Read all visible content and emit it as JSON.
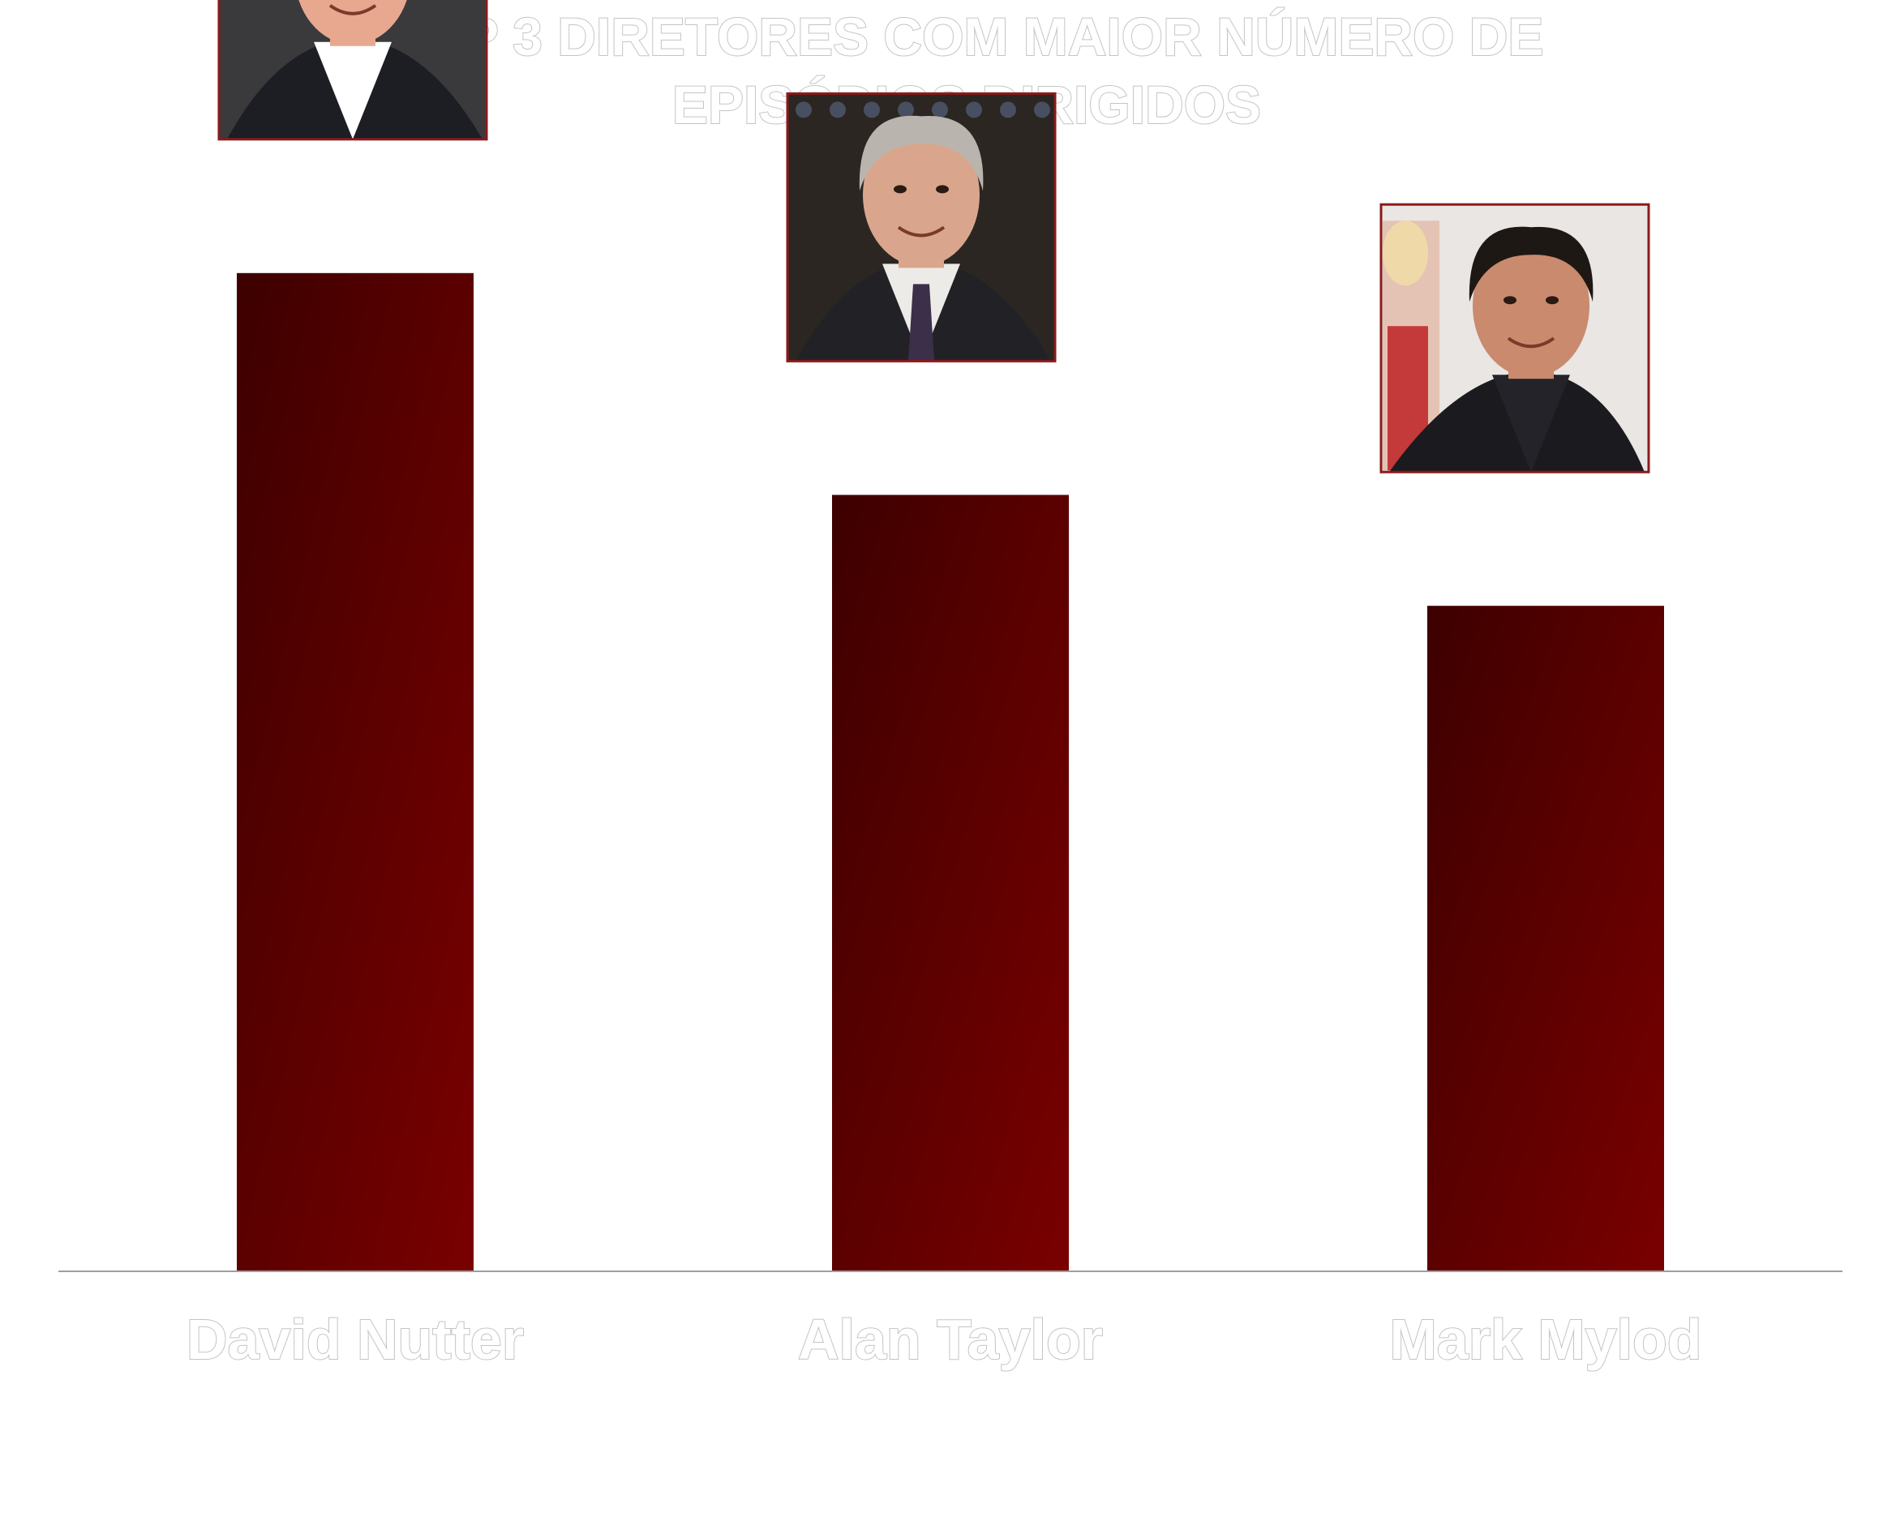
{
  "colors": {
    "bar_dark": "#3d0000",
    "bar_light": "#7a0000",
    "photo_border": "#8b1a1a",
    "axis": "#9e9e9e",
    "label_fill": "#ffffff",
    "label_outline": "#c4c4c4"
  },
  "chart_data": {
    "type": "bar",
    "title_lines": [
      "TOP 3 DIRETORES COM MAIOR NÚMERO DE",
      "EPISÓDIOS DIRIGIDOS"
    ],
    "categories": [
      "David Nutter",
      "Alan Taylor",
      "Mark Mylod"
    ],
    "values": [
      9,
      7,
      6
    ],
    "ylim": [
      0,
      10
    ],
    "grid": false,
    "legend": "none",
    "photos": [
      "photo of David Nutter",
      "photo of Alan Taylor",
      "photo of Mark Mylod"
    ]
  }
}
